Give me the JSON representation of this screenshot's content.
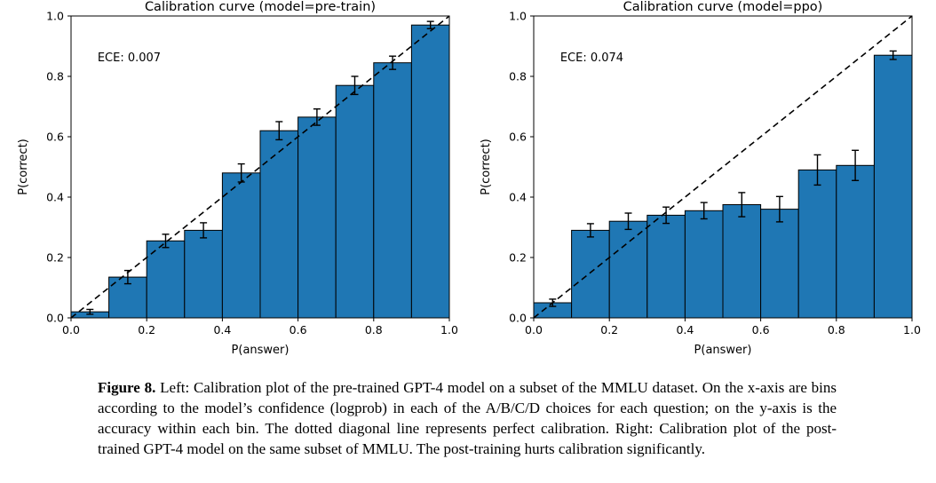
{
  "chart_data": [
    {
      "type": "bar",
      "title": "Calibration curve (model=pre-train)",
      "xlabel": "P(answer)",
      "ylabel": "P(correct)",
      "annotation": "ECE: 0.007",
      "annotation_xy": [
        0.07,
        0.85
      ],
      "xlim": [
        0.0,
        1.0
      ],
      "ylim": [
        0.0,
        1.0
      ],
      "xticks": [
        "0.0",
        "0.2",
        "0.4",
        "0.6",
        "0.8",
        "1.0"
      ],
      "yticks": [
        "0.0",
        "0.2",
        "0.4",
        "0.6",
        "0.8",
        "1.0"
      ],
      "bin_centers": [
        0.05,
        0.15,
        0.25,
        0.35,
        0.45,
        0.55,
        0.65,
        0.75,
        0.85,
        0.95
      ],
      "bar_width": 0.1,
      "values": [
        0.02,
        0.135,
        0.255,
        0.29,
        0.48,
        0.62,
        0.665,
        0.77,
        0.845,
        0.97
      ],
      "errors": [
        0.008,
        0.022,
        0.022,
        0.025,
        0.03,
        0.03,
        0.027,
        0.03,
        0.022,
        0.012
      ],
      "bar_color": "#1f77b4",
      "bar_edge_color": "#000000",
      "diagonal": true,
      "grid": false
    },
    {
      "type": "bar",
      "title": "Calibration curve (model=ppo)",
      "xlabel": "P(answer)",
      "ylabel": "P(correct)",
      "annotation": "ECE: 0.074",
      "annotation_xy": [
        0.07,
        0.85
      ],
      "xlim": [
        0.0,
        1.0
      ],
      "ylim": [
        0.0,
        1.0
      ],
      "xticks": [
        "0.0",
        "0.2",
        "0.4",
        "0.6",
        "0.8",
        "1.0"
      ],
      "yticks": [
        "0.0",
        "0.2",
        "0.4",
        "0.6",
        "0.8",
        "1.0"
      ],
      "bin_centers": [
        0.05,
        0.15,
        0.25,
        0.35,
        0.45,
        0.55,
        0.65,
        0.75,
        0.85,
        0.95
      ],
      "bar_width": 0.1,
      "values": [
        0.05,
        0.29,
        0.32,
        0.34,
        0.355,
        0.375,
        0.36,
        0.49,
        0.505,
        0.87
      ],
      "errors": [
        0.012,
        0.022,
        0.027,
        0.027,
        0.027,
        0.04,
        0.042,
        0.05,
        0.05,
        0.014
      ],
      "bar_color": "#1f77b4",
      "bar_edge_color": "#000000",
      "diagonal": true,
      "grid": false
    }
  ],
  "caption": {
    "label": "Figure 8.",
    "text": " Left: Calibration plot of the pre-trained GPT-4 model on a subset of the MMLU dataset. On the x-axis are bins according to the model’s confidence (logprob) in each of the A/B/C/D choices for each question; on the y-axis is the accuracy within each bin. The dotted diagonal line represents perfect calibration. Right: Calibration plot of the post-trained GPT-4 model on the same subset of MMLU. The post-training hurts calibration significantly."
  }
}
